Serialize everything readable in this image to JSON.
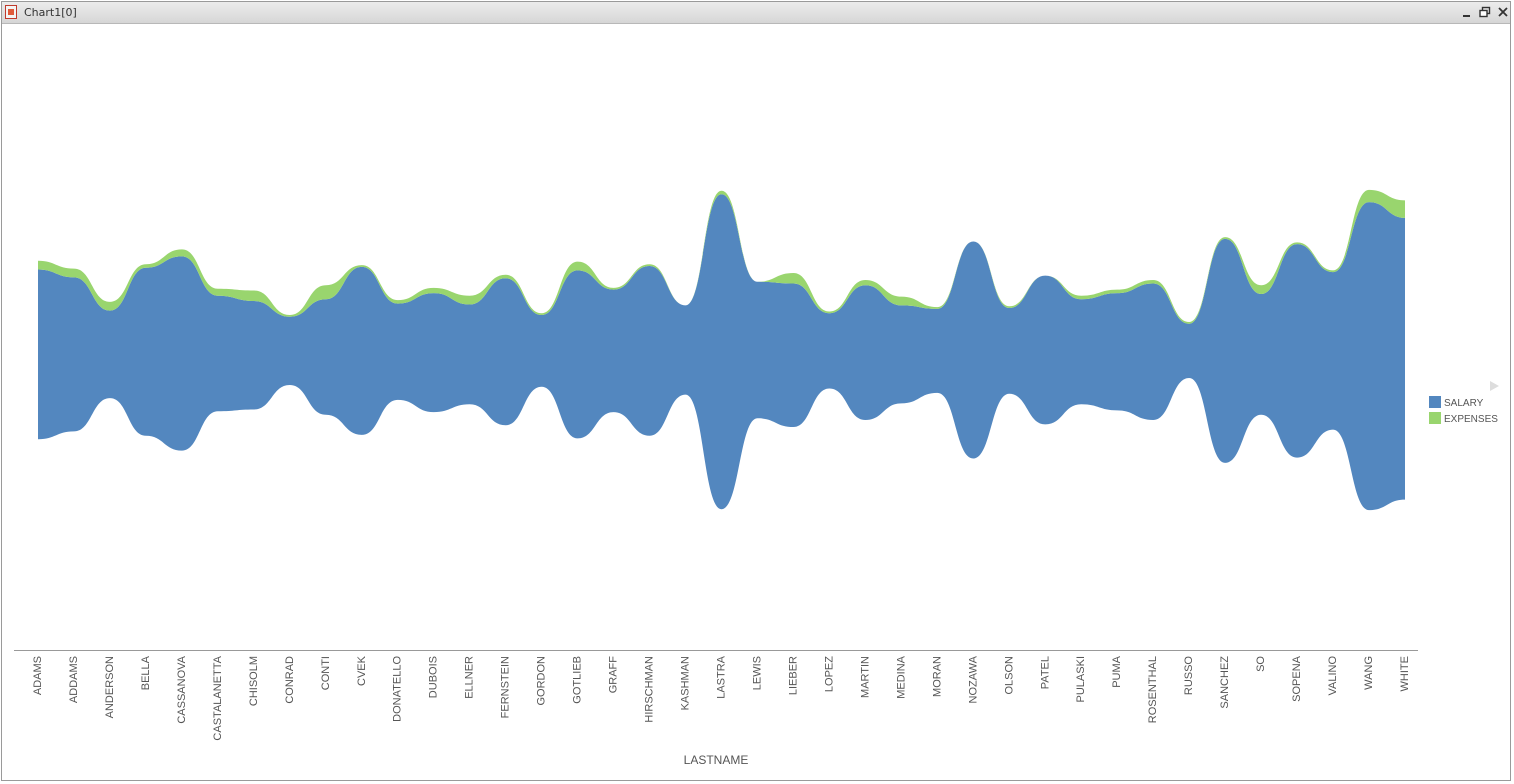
{
  "window": {
    "title": "Chart1[0]",
    "controls": [
      "minimize-icon",
      "restore-icon",
      "close-icon"
    ]
  },
  "chart_data": {
    "type": "area",
    "subtype": "streamgraph",
    "xlabel": "LASTNAME",
    "categories": [
      "ADAMS",
      "ADDAMS",
      "ANDERSON",
      "BELLA",
      "CASSANOVA",
      "CASTALANETTA",
      "CHISOLM",
      "CONRAD",
      "CONTI",
      "CVEK",
      "DONATELLO",
      "DUBOIS",
      "ELLNER",
      "FERNSTEIN",
      "GORDON",
      "GOTLIEB",
      "GRAFF",
      "HIRSCHMAN",
      "KASHMAN",
      "LASTRA",
      "LEWIS",
      "LIEBER",
      "LOPEZ",
      "MARTIN",
      "MEDINA",
      "MORAN",
      "NOZAWA",
      "OLSON",
      "PATEL",
      "PULASKI",
      "PUMA",
      "ROSENTHAL",
      "RUSSO",
      "SANCHEZ",
      "SO",
      "SOPENA",
      "VALINO",
      "WANG",
      "WHITE"
    ],
    "series": [
      {
        "name": "SALARY",
        "color": "#5387bf",
        "values": [
          97,
          88,
          50,
          96,
          111,
          66,
          62,
          39,
          66,
          96,
          55,
          68,
          57,
          84,
          41,
          96,
          70,
          97,
          51,
          180,
          78,
          82,
          43,
          77,
          56,
          48,
          124,
          49,
          85,
          60,
          67,
          78,
          31,
          128,
          69,
          122,
          90,
          176,
          161
        ]
      },
      {
        "name": "EXPENSES",
        "color": "#99d56e",
        "values": [
          5,
          5,
          5,
          2,
          4,
          4,
          6,
          1,
          8,
          1,
          2,
          3,
          5,
          2,
          1,
          5,
          1,
          1,
          0,
          2,
          0,
          6,
          1,
          3,
          5,
          1,
          0,
          1,
          0,
          2,
          2,
          2,
          1,
          1,
          5,
          1,
          1,
          7,
          10
        ]
      }
    ],
    "legend": {
      "position": "right",
      "items": [
        "SALARY",
        "EXPENSES"
      ]
    },
    "grid": false
  }
}
